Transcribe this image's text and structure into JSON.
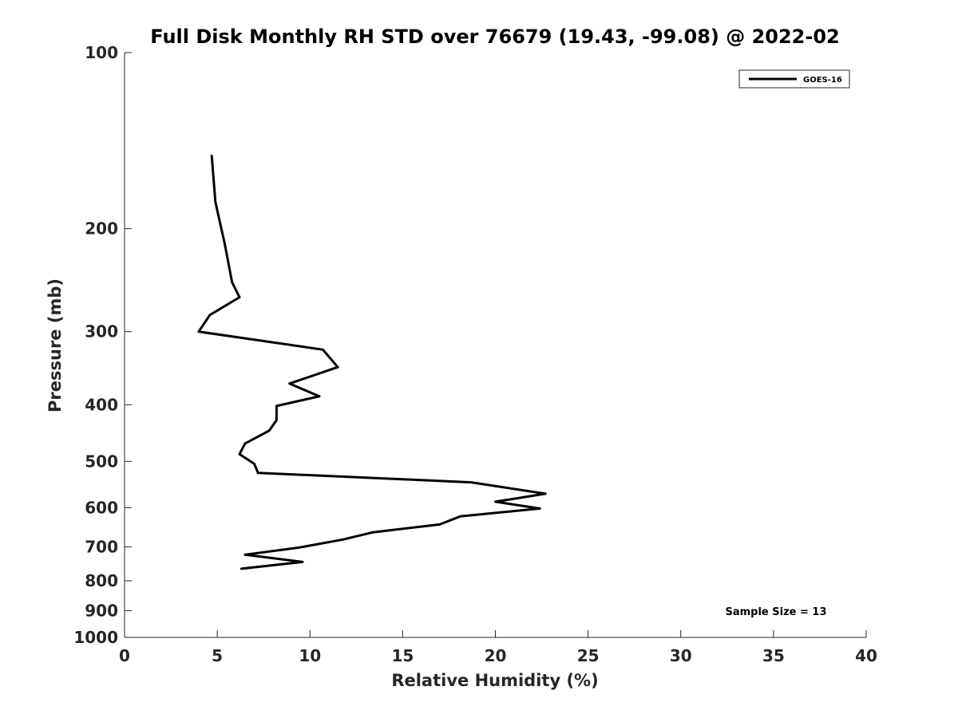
{
  "chart_data": {
    "type": "line",
    "title": "Full Disk Monthly RH STD over 76679 (19.43, -99.08) @ 2022-02",
    "xlabel": "Relative Humidity (%)",
    "ylabel": "Pressure (mb)",
    "xlim": [
      0,
      40
    ],
    "ylim": [
      100,
      1000
    ],
    "y_scale": "log",
    "y_reversed": true,
    "xticks": [
      0,
      5,
      10,
      15,
      20,
      25,
      30,
      35,
      40
    ],
    "yticks": [
      100,
      200,
      300,
      400,
      500,
      600,
      700,
      800,
      900,
      1000
    ],
    "grid": false,
    "legend": {
      "position": "top-right"
    },
    "series": [
      {
        "name": "GOES-16",
        "color": "#000000",
        "points": [
          {
            "x": 4.7,
            "y": 150
          },
          {
            "x": 4.9,
            "y": 180
          },
          {
            "x": 5.4,
            "y": 212
          },
          {
            "x": 5.8,
            "y": 247
          },
          {
            "x": 6.2,
            "y": 262
          },
          {
            "x": 4.6,
            "y": 281
          },
          {
            "x": 4.0,
            "y": 300
          },
          {
            "x": 10.7,
            "y": 322
          },
          {
            "x": 11.5,
            "y": 345
          },
          {
            "x": 8.9,
            "y": 368
          },
          {
            "x": 10.5,
            "y": 387
          },
          {
            "x": 8.2,
            "y": 402
          },
          {
            "x": 8.2,
            "y": 425
          },
          {
            "x": 7.8,
            "y": 443
          },
          {
            "x": 6.5,
            "y": 466
          },
          {
            "x": 6.2,
            "y": 486
          },
          {
            "x": 7.0,
            "y": 505
          },
          {
            "x": 7.2,
            "y": 523
          },
          {
            "x": 18.7,
            "y": 543
          },
          {
            "x": 22.7,
            "y": 568
          },
          {
            "x": 20.0,
            "y": 586
          },
          {
            "x": 22.4,
            "y": 602
          },
          {
            "x": 18.1,
            "y": 621
          },
          {
            "x": 17.0,
            "y": 641
          },
          {
            "x": 13.4,
            "y": 661
          },
          {
            "x": 11.8,
            "y": 680
          },
          {
            "x": 9.4,
            "y": 702
          },
          {
            "x": 6.5,
            "y": 722
          },
          {
            "x": 9.6,
            "y": 743
          },
          {
            "x": 6.3,
            "y": 763
          }
        ]
      }
    ],
    "annotations": [
      "Sample Size = 13"
    ]
  }
}
